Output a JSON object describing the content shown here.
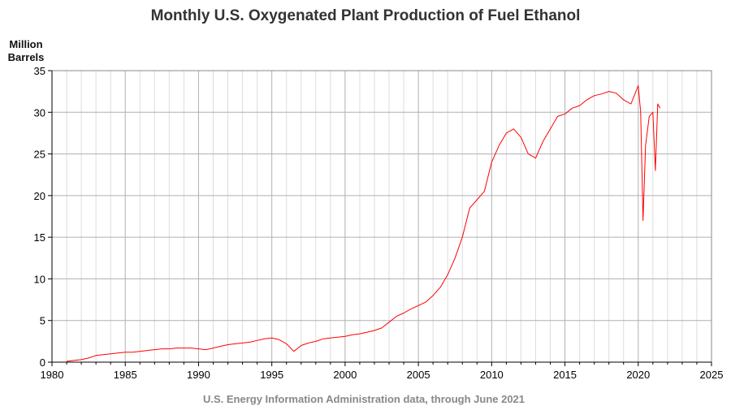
{
  "chart_data": {
    "type": "line",
    "title": "Monthly U.S. Oxygenated Plant Production of Fuel Ethanol",
    "ylabel_lines": [
      "Million",
      "Barrels"
    ],
    "xlabel": "",
    "source_note": "U.S. Energy Information Administration data, through June 2021",
    "xlim": [
      1980,
      2025
    ],
    "ylim": [
      0,
      35
    ],
    "x_ticks": [
      "1980",
      "1985",
      "1990",
      "1995",
      "2000",
      "2005",
      "2010",
      "2015",
      "2020",
      "2025"
    ],
    "y_ticks": [
      "0",
      "5",
      "10",
      "15",
      "20",
      "25",
      "30",
      "35"
    ],
    "minor_x_step": 1,
    "grid": true,
    "line_color": "#ff0000",
    "grid_major_color": "#b0b0b0",
    "grid_minor_color": "#dddddd",
    "series": [
      {
        "x": [
          1981.0,
          1981.5,
          1982.0,
          1982.5,
          1983.0,
          1983.5,
          1984.0,
          1984.5,
          1985.0,
          1985.5,
          1986.0,
          1986.5,
          1987.0,
          1987.5,
          1988.0,
          1988.5,
          1989.0,
          1989.5,
          1990.0,
          1990.5,
          1991.0,
          1991.5,
          1992.0,
          1992.5,
          1993.0,
          1993.5,
          1994.0,
          1994.5,
          1995.0,
          1995.5,
          1996.0,
          1996.5,
          1997.0,
          1997.5,
          1998.0,
          1998.5,
          1999.0,
          1999.5,
          2000.0,
          2000.5,
          2001.0,
          2001.5,
          2002.0,
          2002.5,
          2003.0,
          2003.5,
          2004.0,
          2004.5,
          2005.0,
          2005.5,
          2006.0,
          2006.5,
          2007.0,
          2007.5,
          2008.0,
          2008.5,
          2009.0,
          2009.5,
          2010.0,
          2010.5,
          2011.0,
          2011.5,
          2012.0,
          2012.5,
          2013.0,
          2013.5,
          2014.0,
          2014.5,
          2015.0,
          2015.5,
          2016.0,
          2016.5,
          2017.0,
          2017.5,
          2018.0,
          2018.5,
          2019.0,
          2019.5,
          2020.0,
          2020.17,
          2020.33,
          2020.5,
          2020.75,
          2021.0,
          2021.17,
          2021.33,
          2021.5
        ],
        "y": [
          0.1,
          0.2,
          0.3,
          0.5,
          0.8,
          0.9,
          1.0,
          1.1,
          1.2,
          1.2,
          1.3,
          1.4,
          1.5,
          1.6,
          1.6,
          1.7,
          1.7,
          1.7,
          1.6,
          1.5,
          1.7,
          1.9,
          2.1,
          2.2,
          2.3,
          2.4,
          2.6,
          2.8,
          2.9,
          2.7,
          2.2,
          1.3,
          2.0,
          2.3,
          2.5,
          2.8,
          2.9,
          3.0,
          3.1,
          3.3,
          3.4,
          3.6,
          3.8,
          4.1,
          4.8,
          5.5,
          5.9,
          6.4,
          6.8,
          7.2,
          8.0,
          9.0,
          10.5,
          12.5,
          15.0,
          18.5,
          19.5,
          20.5,
          24.0,
          26.0,
          27.5,
          28.0,
          27.0,
          25.0,
          24.5,
          26.5,
          28.0,
          29.5,
          29.8,
          30.5,
          30.8,
          31.5,
          32.0,
          32.2,
          32.5,
          32.3,
          31.5,
          31.0,
          33.2,
          30.0,
          17.0,
          26.0,
          29.5,
          30.0,
          23.0,
          31.0,
          30.5
        ]
      }
    ]
  }
}
